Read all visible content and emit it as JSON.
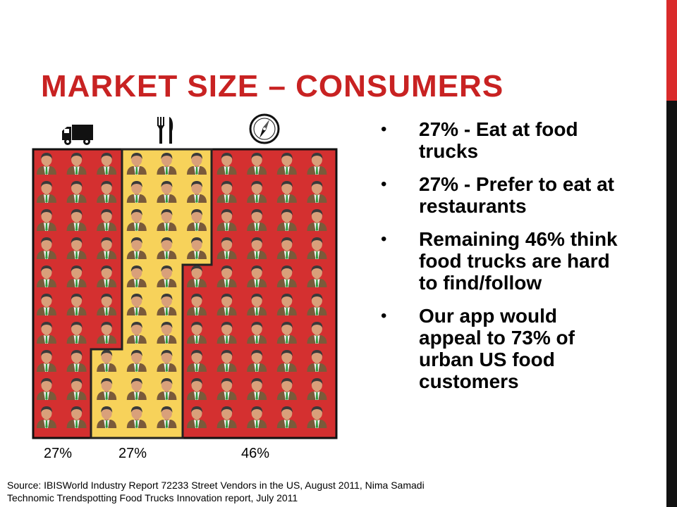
{
  "slide": {
    "title": "MARKET SIZE – CONSUMERS",
    "accent_colors": {
      "title": "#c82222",
      "red_panel": "#d43030",
      "yellow_panel": "#f7d25a",
      "bar_top": "#d92b2b",
      "bar_bottom": "#111111"
    }
  },
  "infographic": {
    "icons": [
      "truck-icon",
      "fork-knife-icon",
      "compass-icon"
    ],
    "segments": [
      {
        "label": "27%",
        "color": "#d43030",
        "icon": "truck-icon"
      },
      {
        "label": "27%",
        "color": "#f7d25a",
        "icon": "fork-knife-icon"
      },
      {
        "label": "46%",
        "color": "#d43030",
        "icon": "compass-icon"
      }
    ]
  },
  "bullets": [
    "27% - Eat at food trucks",
    "27% - Prefer to eat at restaurants",
    "Remaining 46% think food trucks are hard to find/follow",
    "Our app would appeal to 73% of urban US food customers"
  ],
  "source": {
    "line1": "Source: IBISWorld Industry  Report 72233 Street Vendors in the US, August 2011, Nima Samadi",
    "line2": "Technomic Trendspotting  Food Trucks Innovation  report, July 2011"
  }
}
